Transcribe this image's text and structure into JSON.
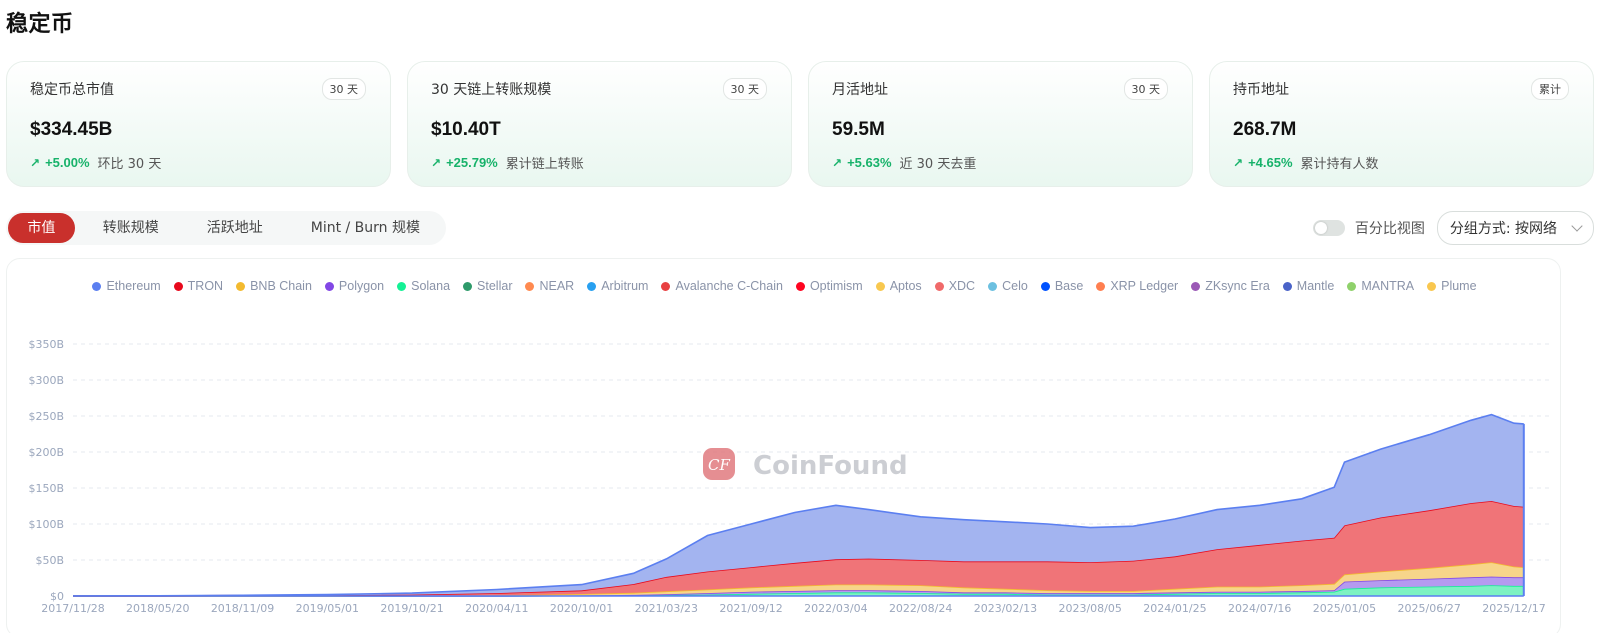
{
  "page": {
    "title": "稳定币"
  },
  "cards": [
    {
      "label": "稳定币总市值",
      "badge": "30 天",
      "value": "$334.45B",
      "arrow": "↗",
      "delta": "+5.00%",
      "note": "环比 30 天"
    },
    {
      "label": "30 天链上转账规模",
      "badge": "30 天",
      "value": "$10.40T",
      "arrow": "↗",
      "delta": "+25.79%",
      "note": "累计链上转账"
    },
    {
      "label": "月活地址",
      "badge": "30 天",
      "value": "59.5M",
      "arrow": "↗",
      "delta": "+5.63%",
      "note": "近 30 天去重"
    },
    {
      "label": "持币地址",
      "badge": "累计",
      "value": "268.7M",
      "arrow": "↗",
      "delta": "+4.65%",
      "note": "累计持有人数"
    }
  ],
  "tabs": [
    {
      "label": "市值",
      "active": true
    },
    {
      "label": "转账规模",
      "active": false
    },
    {
      "label": "活跃地址",
      "active": false
    },
    {
      "label": "Mint / Burn 规模",
      "active": false
    }
  ],
  "controls": {
    "percent_toggle_label": "百分比视图",
    "percent_toggle_on": false,
    "group_by_label": "分组方式: 按网络"
  },
  "watermark": {
    "text": "CoinFound",
    "logo_glyph": "CF"
  },
  "colors": {
    "accent": "#c9302c",
    "positive": "#17b26a"
  },
  "chart_data": {
    "type": "area",
    "stacked": true,
    "title": "",
    "xlabel": "",
    "ylabel": "",
    "ylim": [
      0,
      350
    ],
    "y_unit": "$B",
    "grid": true,
    "legend_position": "top",
    "yticks": [
      "$0",
      "$50B",
      "$100B",
      "$150B",
      "$200B",
      "$250B",
      "$300B",
      "$350B"
    ],
    "xticks": [
      "2017/11/28",
      "2018/05/20",
      "2018/11/09",
      "2019/05/01",
      "2019/10/21",
      "2020/04/11",
      "2020/10/01",
      "2021/03/23",
      "2021/09/12",
      "2022/03/04",
      "2022/08/24",
      "2023/02/13",
      "2023/08/05",
      "2024/01/25",
      "2024/07/16",
      "2025/01/05",
      "2025/06/27",
      "2025/12/17"
    ],
    "legend": [
      {
        "name": "Ethereum",
        "color": "#5b7ff0"
      },
      {
        "name": "TRON",
        "color": "#e8091c"
      },
      {
        "name": "BNB Chain",
        "color": "#f3ba2f"
      },
      {
        "name": "Polygon",
        "color": "#8247e5"
      },
      {
        "name": "Solana",
        "color": "#14f195"
      },
      {
        "name": "Stellar",
        "color": "#2e9a6a"
      },
      {
        "name": "NEAR",
        "color": "#ff8a50"
      },
      {
        "name": "Arbitrum",
        "color": "#28a0f0"
      },
      {
        "name": "Avalanche C-Chain",
        "color": "#e84142"
      },
      {
        "name": "Optimism",
        "color": "#ff0420"
      },
      {
        "name": "Aptos",
        "color": "#f8c84f"
      },
      {
        "name": "XDC",
        "color": "#f06a6a"
      },
      {
        "name": "Celo",
        "color": "#6cc0e0"
      },
      {
        "name": "Base",
        "color": "#0052ff"
      },
      {
        "name": "XRP Ledger",
        "color": "#ff7f50"
      },
      {
        "name": "ZKsync Era",
        "color": "#9b59b6"
      },
      {
        "name": "Mantle",
        "color": "#4a63c8"
      },
      {
        "name": "MANTRA",
        "color": "#8fd16b"
      },
      {
        "name": "Plume",
        "color": "#f9c74f"
      }
    ],
    "x": [
      "2017/11/28",
      "2018/05/20",
      "2018/11/09",
      "2019/05/01",
      "2019/10/21",
      "2020/04/11",
      "2020/10/01",
      "2021/01/15",
      "2021/03/23",
      "2021/06/15",
      "2021/09/12",
      "2021/12/10",
      "2022/03/04",
      "2022/05/10",
      "2022/08/24",
      "2022/11/20",
      "2023/02/13",
      "2023/05/10",
      "2023/08/05",
      "2023/11/01",
      "2024/01/25",
      "2024/04/20",
      "2024/07/16",
      "2024/10/10",
      "2024/12/15",
      "2025/01/05",
      "2025/03/20",
      "2025/06/27",
      "2025/09/20",
      "2025/11/01",
      "2025/12/17",
      "2026/01/06"
    ],
    "series": [
      {
        "name": "Solana",
        "values": [
          0,
          0,
          0,
          0,
          0,
          0,
          0.5,
          1,
          1.5,
          2,
          3,
          4,
          5,
          5,
          4,
          3,
          3,
          2,
          2,
          2,
          3,
          4,
          4,
          5,
          6,
          10,
          12,
          13,
          14,
          15,
          14,
          14
        ]
      },
      {
        "name": "Polygon",
        "values": [
          0,
          0,
          0,
          0,
          0,
          0,
          0.3,
          0.5,
          1,
          2,
          3,
          3,
          3,
          3,
          3,
          2,
          2,
          2,
          2,
          2,
          2,
          2,
          2,
          2,
          2,
          10,
          10,
          11,
          12,
          12,
          12,
          12
        ]
      },
      {
        "name": "BNB Chain",
        "values": [
          0,
          0,
          0,
          0,
          0.5,
          1,
          2,
          3,
          4,
          5,
          6,
          7,
          8,
          8,
          8,
          7,
          5,
          4,
          3,
          3,
          5,
          7,
          7,
          8,
          9,
          10,
          12,
          15,
          18,
          20,
          15,
          14
        ]
      },
      {
        "name": "TRON",
        "values": [
          0,
          0,
          0.5,
          1,
          1.5,
          3,
          5,
          12,
          20,
          25,
          28,
          32,
          35,
          36,
          35,
          36,
          38,
          40,
          40,
          42,
          45,
          52,
          58,
          62,
          64,
          68,
          75,
          80,
          85,
          85,
          84,
          84
        ]
      },
      {
        "name": "Ethereum",
        "values": [
          0.2,
          0.3,
          0.5,
          1,
          2,
          5,
          8,
          15,
          25,
          50,
          60,
          70,
          75,
          68,
          60,
          58,
          55,
          52,
          48,
          48,
          52,
          55,
          55,
          58,
          70,
          88,
          95,
          105,
          115,
          120,
          115,
          115
        ]
      }
    ],
    "totals_approx": [
      0.2,
      0.3,
      1,
      2,
      4,
      9,
      16,
      32,
      52,
      84,
      100,
      116,
      126,
      120,
      110,
      106,
      103,
      100,
      95,
      97,
      107,
      120,
      126,
      135,
      151,
      186,
      204,
      224,
      244,
      252,
      240,
      239
    ],
    "last_total_label": "$334.45B"
  }
}
